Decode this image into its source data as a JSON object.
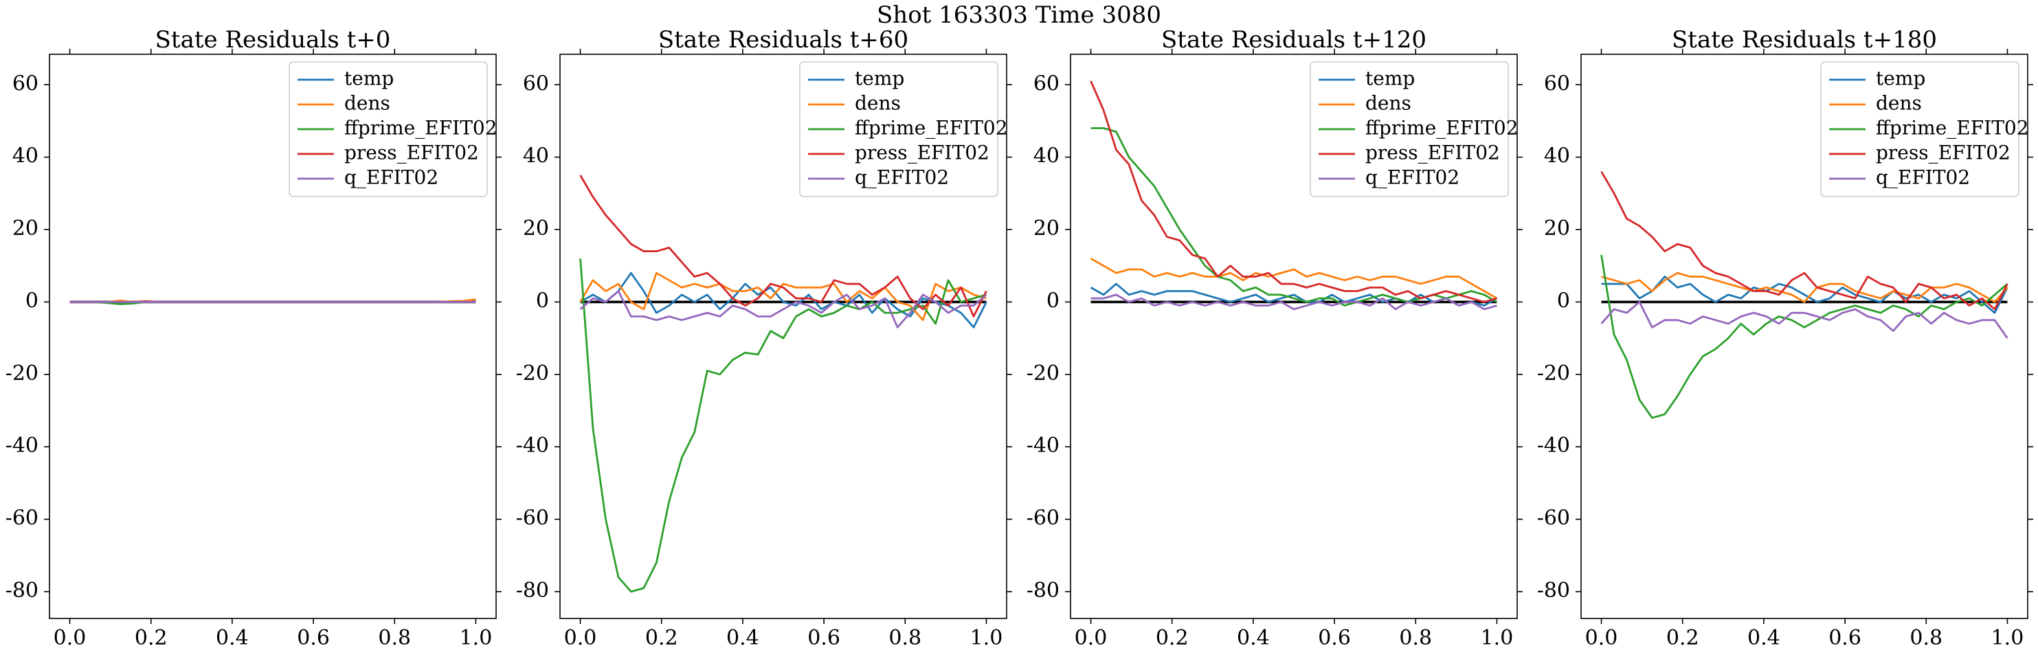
{
  "title": "Shot 163303   Time 3080",
  "chart_data": [
    {
      "type": "line",
      "title": "State Residuals t+0",
      "legend": "upper right",
      "x": [
        0,
        0.0312,
        0.0625,
        0.0938,
        0.125,
        0.1562,
        0.1875,
        0.2188,
        0.25,
        0.2812,
        0.3125,
        0.3438,
        0.375,
        0.4062,
        0.4375,
        0.4688,
        0.5,
        0.5312,
        0.5625,
        0.5938,
        0.625,
        0.6562,
        0.6875,
        0.7188,
        0.75,
        0.7812,
        0.8125,
        0.8438,
        0.875,
        0.9062,
        0.9375,
        0.9688,
        1
      ],
      "xlim": [
        -0.05,
        1.05
      ],
      "ylim": [
        -87.4,
        68.4
      ],
      "xticks": [
        {
          "value": 0,
          "label": "0.0"
        },
        {
          "value": 0.2,
          "label": "0.2"
        },
        {
          "value": 0.4,
          "label": "0.4"
        },
        {
          "value": 0.6,
          "label": "0.6"
        },
        {
          "value": 0.8,
          "label": "0.8"
        },
        {
          "value": 1,
          "label": "1.0"
        }
      ],
      "yticks": [
        -80,
        -60,
        -40,
        -20,
        0,
        20,
        40,
        60
      ],
      "hline": {
        "value": 0,
        "color": "#000000"
      },
      "series": [
        {
          "name": "temp",
          "color": "#1f77b4",
          "values": [
            0,
            0,
            0,
            0,
            0,
            0,
            0,
            0,
            0,
            0,
            0,
            0,
            0,
            0,
            0,
            0,
            0,
            0,
            0,
            0,
            0,
            0,
            0,
            0,
            0,
            0,
            0,
            0,
            0,
            0,
            0,
            0,
            0.3
          ]
        },
        {
          "name": "dens",
          "color": "#ff7f0e",
          "values": [
            0,
            0,
            0,
            0,
            0.4,
            0,
            0.2,
            0,
            0,
            0,
            0,
            0,
            0,
            0,
            0,
            0,
            0,
            0,
            0,
            0,
            0,
            0,
            0,
            0,
            0,
            0,
            0,
            0,
            0,
            0,
            0.2,
            0.3,
            0.7
          ]
        },
        {
          "name": "ffprime_EFIT02",
          "color": "#2ca02c",
          "values": [
            0,
            0,
            0,
            -0.3,
            -0.6,
            -0.4,
            0,
            0,
            0,
            0,
            0,
            0,
            0,
            0,
            0,
            0,
            0,
            0,
            0,
            0,
            0,
            0,
            0,
            0,
            0,
            0,
            0,
            0,
            0,
            0,
            0,
            0,
            0
          ]
        },
        {
          "name": "press_EFIT02",
          "color": "#d62728",
          "values": [
            0,
            0,
            0,
            0,
            0,
            0,
            0.2,
            0,
            0,
            0,
            0,
            0,
            0,
            0,
            0,
            0,
            0,
            0,
            0,
            0,
            0,
            0,
            0,
            0,
            0,
            0,
            0,
            0,
            0,
            0,
            0,
            0,
            0
          ]
        },
        {
          "name": "q_EFIT02",
          "color": "#9467bd",
          "values": [
            0,
            0,
            0,
            0,
            0,
            0,
            0,
            0,
            0,
            0,
            0,
            0,
            0,
            0,
            0,
            0,
            0,
            0,
            0,
            0,
            0,
            0,
            0,
            0,
            0,
            0,
            0,
            0,
            0,
            0,
            0,
            0,
            0
          ]
        }
      ]
    },
    {
      "type": "line",
      "title": "State Residuals t+60",
      "legend": "upper right",
      "x": [
        0,
        0.0312,
        0.0625,
        0.0938,
        0.125,
        0.1562,
        0.1875,
        0.2188,
        0.25,
        0.2812,
        0.3125,
        0.3438,
        0.375,
        0.4062,
        0.4375,
        0.4688,
        0.5,
        0.5312,
        0.5625,
        0.5938,
        0.625,
        0.6562,
        0.6875,
        0.7188,
        0.75,
        0.7812,
        0.8125,
        0.8438,
        0.875,
        0.9062,
        0.9375,
        0.9688,
        1
      ],
      "xlim": [
        -0.05,
        1.05
      ],
      "ylim": [
        -87.4,
        68.4
      ],
      "xticks": [
        {
          "value": 0,
          "label": "0.0"
        },
        {
          "value": 0.2,
          "label": "0.2"
        },
        {
          "value": 0.4,
          "label": "0.4"
        },
        {
          "value": 0.6,
          "label": "0.6"
        },
        {
          "value": 0.8,
          "label": "0.8"
        },
        {
          "value": 1,
          "label": "1.0"
        }
      ],
      "yticks": [
        -80,
        -60,
        -40,
        -20,
        0,
        20,
        40,
        60
      ],
      "hline": {
        "value": 0,
        "color": "#000000"
      },
      "series": [
        {
          "name": "temp",
          "color": "#1f77b4",
          "values": [
            0,
            2,
            0,
            3,
            8,
            3,
            -3,
            -1,
            2,
            0,
            2,
            -2,
            1,
            5,
            2,
            4,
            0,
            -1,
            2,
            -2,
            0,
            -1,
            2,
            -3,
            1,
            -2,
            -4,
            1,
            0,
            -1,
            -3,
            -7,
            0
          ]
        },
        {
          "name": "dens",
          "color": "#ff7f0e",
          "values": [
            0,
            6,
            3,
            5,
            0,
            -2,
            8,
            6,
            4,
            5,
            4,
            5,
            3,
            3,
            4,
            1,
            5,
            4,
            4,
            4,
            5,
            0,
            3,
            1,
            4,
            0,
            -1,
            -5,
            5,
            3,
            4,
            2,
            1
          ]
        },
        {
          "name": "ffprime_EFIT02",
          "color": "#2ca02c",
          "values": [
            12,
            -35,
            -60,
            -76,
            -80,
            -79,
            -72,
            -55,
            -43,
            -36,
            -19,
            -20,
            -16,
            -14,
            -14.5,
            -8,
            -10,
            -4,
            -2,
            -4,
            -3,
            -1,
            -2,
            0,
            -3,
            -3,
            -2,
            -1,
            -6,
            6,
            0,
            1,
            2
          ]
        },
        {
          "name": "press_EFIT02",
          "color": "#d62728",
          "values": [
            35,
            29,
            24,
            20,
            16,
            14,
            14,
            15,
            11,
            7,
            8,
            5,
            1,
            -1,
            1,
            5,
            4,
            1,
            1,
            0,
            6,
            5,
            5,
            2,
            4,
            7,
            1,
            -2,
            2,
            -1,
            4,
            -4,
            3
          ]
        },
        {
          "name": "q_EFIT02",
          "color": "#9467bd",
          "values": [
            -2,
            1,
            0,
            3,
            -4,
            -4,
            -5,
            -4,
            -5,
            -4,
            -3,
            -4,
            -1,
            -2,
            -4,
            -4,
            -2,
            0,
            -1,
            -3,
            0,
            2,
            -2,
            -1,
            1,
            -7,
            -3,
            2,
            0,
            -3,
            -1,
            -1,
            2
          ]
        }
      ]
    },
    {
      "type": "line",
      "title": "State Residuals t+120",
      "legend": "upper right",
      "x": [
        0,
        0.0312,
        0.0625,
        0.0938,
        0.125,
        0.1562,
        0.1875,
        0.2188,
        0.25,
        0.2812,
        0.3125,
        0.3438,
        0.375,
        0.4062,
        0.4375,
        0.4688,
        0.5,
        0.5312,
        0.5625,
        0.5938,
        0.625,
        0.6562,
        0.6875,
        0.7188,
        0.75,
        0.7812,
        0.8125,
        0.8438,
        0.875,
        0.9062,
        0.9375,
        0.9688,
        1
      ],
      "xlim": [
        -0.05,
        1.05
      ],
      "ylim": [
        -87.4,
        68.4
      ],
      "xticks": [
        {
          "value": 0,
          "label": "0.0"
        },
        {
          "value": 0.2,
          "label": "0.2"
        },
        {
          "value": 0.4,
          "label": "0.4"
        },
        {
          "value": 0.6,
          "label": "0.6"
        },
        {
          "value": 0.8,
          "label": "0.8"
        },
        {
          "value": 1,
          "label": "1.0"
        }
      ],
      "yticks": [
        -80,
        -60,
        -40,
        -20,
        0,
        20,
        40,
        60
      ],
      "hline": {
        "value": 0,
        "color": "#000000"
      },
      "series": [
        {
          "name": "temp",
          "color": "#1f77b4",
          "values": [
            4,
            2,
            5,
            2,
            3,
            2,
            3,
            3,
            3,
            2,
            1,
            0,
            1,
            2,
            0,
            1,
            2,
            0,
            0,
            2,
            0,
            1,
            2,
            0,
            1,
            0,
            2,
            0,
            1,
            -1,
            0,
            -1,
            1
          ]
        },
        {
          "name": "dens",
          "color": "#ff7f0e",
          "values": [
            12,
            10,
            8,
            9,
            9,
            7,
            8,
            7,
            8,
            7,
            7,
            8,
            6,
            8,
            7,
            8,
            9,
            7,
            8,
            7,
            6,
            7,
            6,
            7,
            7,
            6,
            5,
            6,
            7,
            7,
            5,
            3,
            1
          ]
        },
        {
          "name": "ffprime_EFIT02",
          "color": "#2ca02c",
          "values": [
            48,
            48,
            47,
            40,
            36,
            32,
            26,
            20,
            15,
            10,
            7,
            6,
            3,
            4,
            2,
            2,
            1,
            0,
            1,
            1,
            -1,
            0,
            1,
            2,
            1,
            0,
            1,
            2,
            1,
            2,
            3,
            2,
            0
          ]
        },
        {
          "name": "press_EFIT02",
          "color": "#d62728",
          "values": [
            61,
            53,
            42,
            38,
            28,
            24,
            18,
            17,
            13,
            12,
            7,
            10,
            7,
            7,
            8,
            5,
            5,
            4,
            5,
            4,
            3,
            3,
            4,
            4,
            2,
            3,
            1,
            2,
            3,
            2,
            1,
            0,
            1
          ]
        },
        {
          "name": "q_EFIT02",
          "color": "#9467bd",
          "values": [
            1,
            1,
            2,
            0,
            1,
            -1,
            0,
            -1,
            0,
            -1,
            0,
            -1,
            0,
            -1,
            -1,
            0,
            -2,
            -1,
            0,
            -1,
            0,
            0,
            -1,
            1,
            -2,
            0,
            -1,
            0,
            1,
            -1,
            0,
            -2,
            -1
          ]
        }
      ]
    },
    {
      "type": "line",
      "title": "State Residuals t+180",
      "legend": "upper right",
      "x": [
        0,
        0.0312,
        0.0625,
        0.0938,
        0.125,
        0.1562,
        0.1875,
        0.2188,
        0.25,
        0.2812,
        0.3125,
        0.3438,
        0.375,
        0.4062,
        0.4375,
        0.4688,
        0.5,
        0.5312,
        0.5625,
        0.5938,
        0.625,
        0.6562,
        0.6875,
        0.7188,
        0.75,
        0.7812,
        0.8125,
        0.8438,
        0.875,
        0.9062,
        0.9375,
        0.9688,
        1
      ],
      "xlim": [
        -0.05,
        1.05
      ],
      "ylim": [
        -87.4,
        68.4
      ],
      "xticks": [
        {
          "value": 0,
          "label": "0.0"
        },
        {
          "value": 0.2,
          "label": "0.2"
        },
        {
          "value": 0.4,
          "label": "0.4"
        },
        {
          "value": 0.6,
          "label": "0.6"
        },
        {
          "value": 0.8,
          "label": "0.8"
        },
        {
          "value": 1,
          "label": "1.0"
        }
      ],
      "yticks": [
        -80,
        -60,
        -40,
        -20,
        0,
        20,
        40,
        60
      ],
      "hline": {
        "value": 0,
        "color": "#000000"
      },
      "series": [
        {
          "name": "temp",
          "color": "#1f77b4",
          "values": [
            5,
            5,
            5,
            1,
            3,
            7,
            4,
            5,
            2,
            0,
            2,
            1,
            4,
            3,
            5,
            4,
            2,
            0,
            1,
            4,
            2,
            1,
            0,
            3,
            1,
            2,
            0,
            2,
            1,
            3,
            0,
            -3,
            4
          ]
        },
        {
          "name": "dens",
          "color": "#ff7f0e",
          "values": [
            7,
            6,
            5,
            6,
            3,
            6,
            8,
            7,
            7,
            6,
            5,
            4,
            3,
            4,
            3,
            2,
            0,
            4,
            5,
            5,
            3,
            2,
            1,
            3,
            2,
            1,
            4,
            4,
            5,
            4,
            2,
            0,
            4
          ]
        },
        {
          "name": "ffprime_EFIT02",
          "color": "#2ca02c",
          "values": [
            13,
            -9,
            -16,
            -27,
            -32,
            -31,
            -26,
            -20,
            -15,
            -13,
            -10,
            -6,
            -9,
            -6,
            -4,
            -5,
            -7,
            -5,
            -3,
            -2,
            -1,
            -2,
            -3,
            -1,
            -2,
            -4,
            -1,
            -2,
            0,
            1,
            -1,
            2,
            5
          ]
        },
        {
          "name": "press_EFIT02",
          "color": "#d62728",
          "values": [
            36,
            30,
            23,
            21,
            18,
            14,
            16,
            15,
            10,
            8,
            7,
            5,
            3,
            3,
            2,
            6,
            8,
            4,
            3,
            2,
            1,
            7,
            5,
            4,
            0,
            5,
            4,
            1,
            2,
            -1,
            1,
            -2,
            5
          ]
        },
        {
          "name": "q_EFIT02",
          "color": "#9467bd",
          "values": [
            -6,
            -2,
            -3,
            0,
            -7,
            -5,
            -5,
            -6,
            -4,
            -5,
            -6,
            -4,
            -3,
            -4,
            -6,
            -3,
            -3,
            -4,
            -5,
            -3,
            -2,
            -4,
            -5,
            -8,
            -4,
            -3,
            -6,
            -3,
            -5,
            -6,
            -5,
            -5,
            -10
          ]
        }
      ]
    }
  ]
}
